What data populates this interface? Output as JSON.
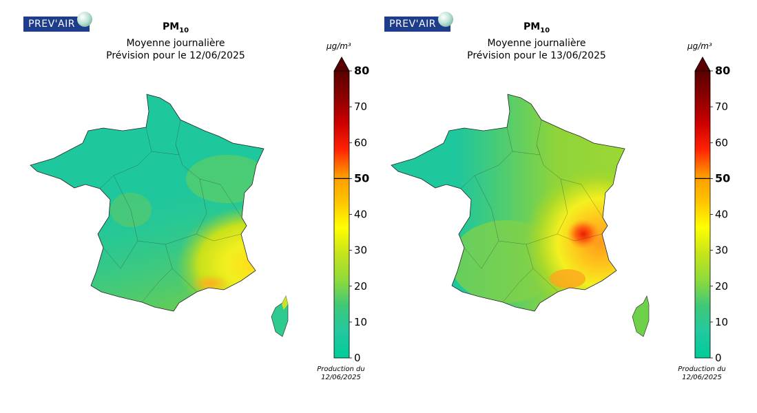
{
  "logo_text": "PREV'AIR",
  "unit": "µg/m³",
  "colorbar": {
    "ticks": [
      0,
      10,
      20,
      30,
      40,
      50,
      60,
      70,
      80
    ],
    "threshold": 50,
    "max_label": "80",
    "threshold_label": "50",
    "colors": [
      "#00cc99",
      "#22c8a0",
      "#3fc879",
      "#8fdb3a",
      "#c6e41a",
      "#ffff00",
      "#ffc400",
      "#ff9900",
      "#ff2200",
      "#cc0000",
      "#8b0000",
      "#5a0000"
    ]
  },
  "panels": [
    {
      "pollutant": "PM",
      "pollutant_sub": "10",
      "subtitle": "Moyenne journalière",
      "forecast": "Prévision pour le 12/06/2025",
      "production_line1": "Production du",
      "production_line2": "12/06/2025"
    },
    {
      "pollutant": "PM",
      "pollutant_sub": "10",
      "subtitle": "Moyenne journalière",
      "forecast": "Prévision pour le 13/06/2025",
      "production_line1": "Production du",
      "production_line2": "12/06/2025"
    }
  ]
}
